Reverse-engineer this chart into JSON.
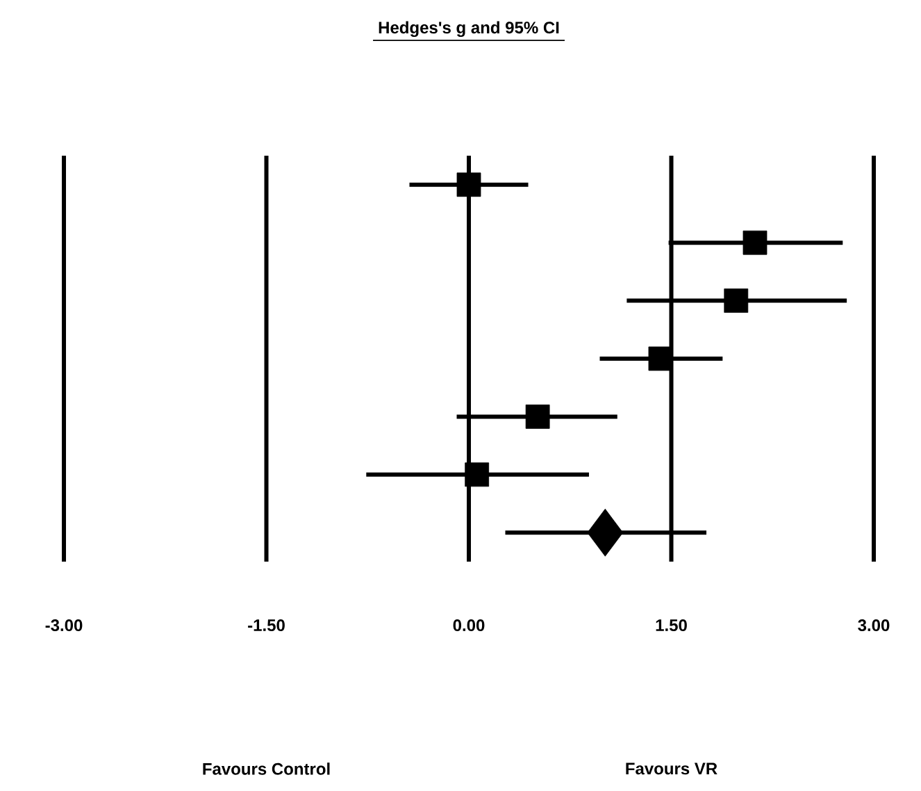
{
  "chart_data": {
    "type": "scatter",
    "orientation": "horizontal",
    "title": "Hedges's g and 95% CI",
    "categories": [
      null,
      null,
      null,
      null,
      null,
      null,
      null
    ],
    "series": [
      {
        "color": "#000000",
        "marker": "square",
        "values": [
          0.0,
          2.12,
          1.98,
          1.42,
          0.51,
          0.06,
          null
        ],
        "errors": [
          [
            -0.44,
            0.44
          ],
          [
            1.48,
            2.77
          ],
          [
            1.17,
            2.8
          ],
          [
            0.97,
            1.88
          ],
          [
            -0.09,
            1.1
          ],
          [
            -0.76,
            0.89
          ],
          null
        ]
      },
      {
        "color": "#000000",
        "marker": "diamond",
        "values": [
          null,
          null,
          null,
          null,
          null,
          null,
          1.01
        ],
        "errors": [
          null,
          null,
          null,
          null,
          null,
          null,
          [
            0.27,
            1.76
          ]
        ]
      }
    ],
    "xlim": [
      -3,
      3
    ],
    "xticks": [
      {
        "value": -3,
        "label": "-3.00"
      },
      {
        "value": -1.5,
        "label": "-1.50"
      },
      {
        "value": 0,
        "label": "0.00"
      },
      {
        "value": 1.5,
        "label": "1.50"
      },
      {
        "value": 3,
        "label": "3.00"
      }
    ],
    "grid": "x",
    "annotations": [
      "Favours Control",
      "Favours VR"
    ]
  }
}
